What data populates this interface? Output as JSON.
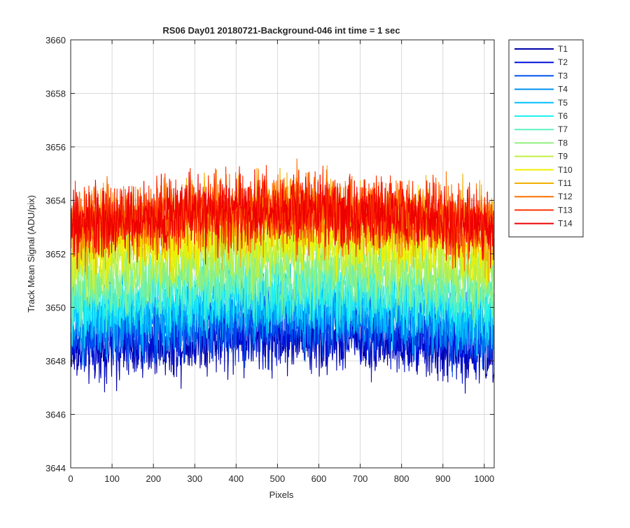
{
  "chart_data": {
    "type": "line",
    "title": "RS06 Day01 20180721-Background-046 int time = 1 sec",
    "xlabel": "Pixels",
    "ylabel": "Track Mean Signal (ADU/pix)",
    "xlim": [
      0,
      1024
    ],
    "ylim": [
      3644,
      3660
    ],
    "xticks": [
      0,
      100,
      200,
      300,
      400,
      500,
      600,
      700,
      800,
      900,
      1000
    ],
    "yticks": [
      3644,
      3646,
      3648,
      3650,
      3652,
      3654,
      3656,
      3658,
      3660
    ],
    "grid": true,
    "legend_position": "outside-top-right",
    "x_range": [
      1,
      1024
    ],
    "series": [
      {
        "name": "T1",
        "color": "#0000AA",
        "level": 3648.3,
        "noise": 0.9
      },
      {
        "name": "T2",
        "color": "#0010D9",
        "level": 3648.6,
        "noise": 0.9
      },
      {
        "name": "T3",
        "color": "#0050F0",
        "level": 3648.9,
        "noise": 0.9
      },
      {
        "name": "T4",
        "color": "#0090F0",
        "level": 3649.3,
        "noise": 0.9
      },
      {
        "name": "T5",
        "color": "#00C0FF",
        "level": 3649.6,
        "noise": 0.9
      },
      {
        "name": "T6",
        "color": "#20F0F0",
        "level": 3650.0,
        "noise": 0.9
      },
      {
        "name": "T7",
        "color": "#60F0C0",
        "level": 3650.4,
        "noise": 0.9
      },
      {
        "name": "T8",
        "color": "#90F080",
        "level": 3651.0,
        "noise": 0.9
      },
      {
        "name": "T9",
        "color": "#C0F040",
        "level": 3651.6,
        "noise": 0.9
      },
      {
        "name": "T10",
        "color": "#F0F000",
        "level": 3652.2,
        "noise": 0.95
      },
      {
        "name": "T11",
        "color": "#F0B000",
        "level": 3652.8,
        "noise": 1.0
      },
      {
        "name": "T12",
        "color": "#FF7000",
        "level": 3653.0,
        "noise": 1.0
      },
      {
        "name": "T13",
        "color": "#FF3000",
        "level": 3653.1,
        "noise": 0.95
      },
      {
        "name": "T14",
        "color": "#EE0000",
        "level": 3653.0,
        "noise": 0.9
      }
    ]
  }
}
